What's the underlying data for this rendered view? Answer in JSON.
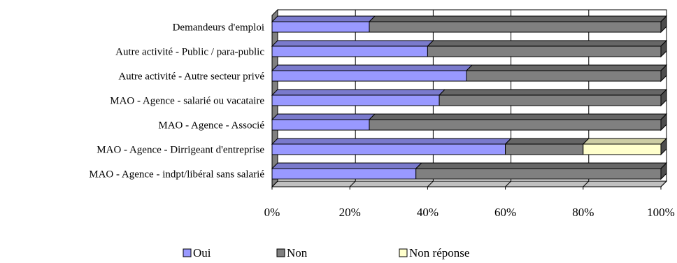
{
  "chart_data": {
    "type": "bar",
    "orientation": "horizontal",
    "stacked": "percent",
    "three_d": true,
    "categories": [
      "Demandeurs d'emploi",
      "Autre activité - Public / para-public",
      "Autre activité - Autre secteur privé",
      "MAO - Agence - salarié ou vacataire",
      "MAO - Agence - Associé",
      "MAO - Agence - Dirrigeant d'entreprise",
      "MAO - Agence - indpt/libéral sans salarié"
    ],
    "series": [
      {
        "name": "Oui",
        "values": [
          25,
          40,
          50,
          43,
          25,
          60,
          37
        ]
      },
      {
        "name": "Non",
        "values": [
          75,
          60,
          50,
          57,
          75,
          20,
          63
        ]
      },
      {
        "name": "Non réponse",
        "values": [
          0,
          0,
          0,
          0,
          0,
          20,
          0
        ]
      }
    ],
    "colors": [
      "#9999ff",
      "#808080",
      "#ffffcc"
    ],
    "x_ticks": [
      "0%",
      "20%",
      "40%",
      "60%",
      "80%",
      "100%"
    ],
    "xlim": [
      0,
      100
    ],
    "grid": true,
    "legend_position": "bottom"
  }
}
